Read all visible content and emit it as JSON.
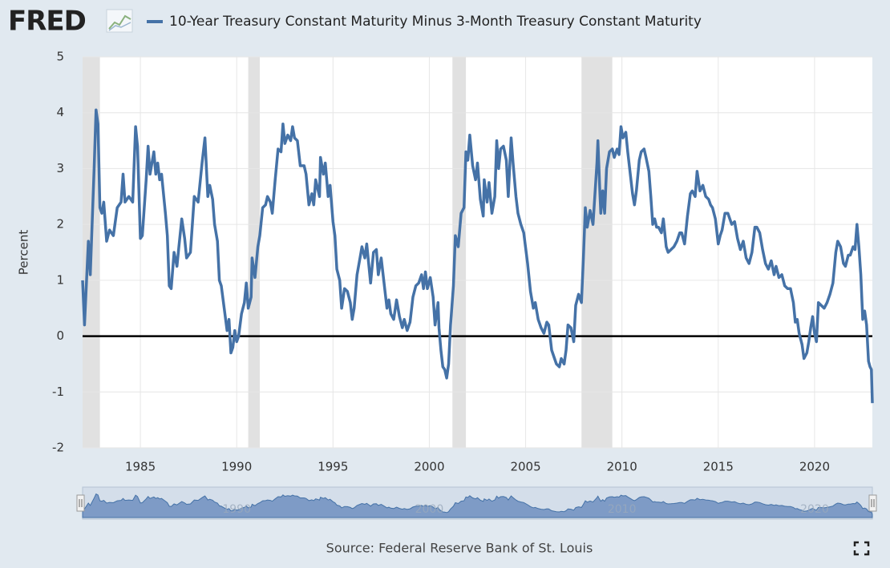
{
  "logo": "FRED",
  "chart_data": {
    "type": "line",
    "y_label": "Percent",
    "source": "Source: Federal Reserve Bank of St. Louis",
    "xlim": [
      1982,
      2023
    ],
    "xticks": [
      1985,
      1990,
      1995,
      2000,
      2005,
      2010,
      2015,
      2020
    ],
    "ylim": [
      -2,
      5
    ],
    "yticks": [
      -2,
      -1,
      0,
      1,
      2,
      3,
      4,
      5
    ],
    "grid": true,
    "zero_line": true,
    "recessions": [
      [
        1982.0,
        1982.9
      ],
      [
        1990.6,
        1991.2
      ],
      [
        2001.2,
        2001.9
      ],
      [
        2007.9,
        2009.5
      ]
    ],
    "navigator_ticks": [
      1990,
      2000,
      2010,
      2020
    ],
    "x": [
      1982.0,
      1982.1,
      1982.3,
      1982.4,
      1982.6,
      1982.7,
      1982.8,
      1982.9,
      1983.0,
      1983.1,
      1983.25,
      1983.4,
      1983.6,
      1983.8,
      1984.0,
      1984.1,
      1984.2,
      1984.4,
      1984.6,
      1984.75,
      1984.85,
      1985.0,
      1985.1,
      1985.3,
      1985.4,
      1985.5,
      1985.7,
      1985.8,
      1985.9,
      1986.0,
      1986.1,
      1986.3,
      1986.4,
      1986.5,
      1986.6,
      1986.75,
      1986.9,
      1987.0,
      1987.15,
      1987.3,
      1987.4,
      1987.6,
      1987.8,
      1988.0,
      1988.2,
      1988.35,
      1988.5,
      1988.6,
      1988.75,
      1988.85,
      1989.0,
      1989.1,
      1989.2,
      1989.35,
      1989.5,
      1989.6,
      1989.7,
      1989.8,
      1989.9,
      1990.0,
      1990.1,
      1990.25,
      1990.4,
      1990.5,
      1990.6,
      1990.75,
      1990.8,
      1990.95,
      1991.1,
      1991.2,
      1991.35,
      1991.5,
      1991.6,
      1991.75,
      1991.85,
      1992.0,
      1992.15,
      1992.3,
      1992.4,
      1992.5,
      1992.65,
      1992.8,
      1992.9,
      1993.0,
      1993.15,
      1993.3,
      1993.5,
      1993.6,
      1993.75,
      1993.9,
      1994.0,
      1994.1,
      1994.3,
      1994.35,
      1994.5,
      1994.6,
      1994.75,
      1994.85,
      1995.0,
      1995.1,
      1995.2,
      1995.35,
      1995.45,
      1995.6,
      1995.75,
      1995.9,
      1996.0,
      1996.1,
      1996.25,
      1996.4,
      1996.5,
      1996.65,
      1996.75,
      1996.85,
      1996.95,
      1997.1,
      1997.25,
      1997.35,
      1997.5,
      1997.65,
      1997.8,
      1997.9,
      1998.0,
      1998.15,
      1998.3,
      1998.45,
      1998.6,
      1998.7,
      1998.85,
      1999.0,
      1999.15,
      1999.3,
      1999.45,
      1999.6,
      1999.7,
      1999.8,
      1999.9,
      2000.05,
      2000.2,
      2000.3,
      2000.45,
      2000.5,
      2000.6,
      2000.7,
      2000.8,
      2000.9,
      2001.0,
      2001.1,
      2001.25,
      2001.35,
      2001.5,
      2001.65,
      2001.8,
      2001.9,
      2002.0,
      2002.1,
      2002.25,
      2002.4,
      2002.5,
      2002.65,
      2002.8,
      2002.85,
      2003.0,
      2003.1,
      2003.25,
      2003.4,
      2003.5,
      2003.6,
      2003.7,
      2003.85,
      2004.0,
      2004.1,
      2004.25,
      2004.35,
      2004.5,
      2004.6,
      2004.75,
      2004.9,
      2005.1,
      2005.25,
      2005.4,
      2005.5,
      2005.65,
      2005.8,
      2005.95,
      2006.1,
      2006.2,
      2006.35,
      2006.5,
      2006.6,
      2006.75,
      2006.85,
      2007.0,
      2007.1,
      2007.2,
      2007.35,
      2007.5,
      2007.6,
      2007.75,
      2007.9,
      2008.0,
      2008.1,
      2008.2,
      2008.35,
      2008.5,
      2008.7,
      2008.75,
      2008.85,
      2008.9,
      2009.0,
      2009.1,
      2009.2,
      2009.35,
      2009.5,
      2009.6,
      2009.75,
      2009.85,
      2009.95,
      2010.05,
      2010.2,
      2010.3,
      2010.45,
      2010.55,
      2010.65,
      2010.75,
      2010.9,
      2011.0,
      2011.15,
      2011.25,
      2011.4,
      2011.5,
      2011.6,
      2011.7,
      2011.8,
      2011.9,
      2012.05,
      2012.15,
      2012.3,
      2012.4,
      2012.55,
      2012.7,
      2012.85,
      2013.0,
      2013.1,
      2013.25,
      2013.4,
      2013.55,
      2013.65,
      2013.8,
      2013.9,
      2014.05,
      2014.2,
      2014.35,
      2014.5,
      2014.6,
      2014.7,
      2014.85,
      2015.0,
      2015.1,
      2015.2,
      2015.35,
      2015.5,
      2015.6,
      2015.7,
      2015.85,
      2016.0,
      2016.15,
      2016.3,
      2016.45,
      2016.6,
      2016.75,
      2016.9,
      2017.0,
      2017.15,
      2017.3,
      2017.45,
      2017.6,
      2017.75,
      2017.9,
      2018.0,
      2018.15,
      2018.3,
      2018.45,
      2018.6,
      2018.75,
      2018.9,
      2019.0,
      2019.1,
      2019.2,
      2019.35,
      2019.45,
      2019.6,
      2019.7,
      2019.8,
      2019.9,
      2020.0,
      2020.1,
      2020.2,
      2020.35,
      2020.5,
      2020.65,
      2020.8,
      2020.95,
      2021.1,
      2021.2,
      2021.35,
      2021.5,
      2021.6,
      2021.75,
      2021.85,
      2022.0,
      2022.1,
      2022.2,
      2022.3,
      2022.4,
      2022.5,
      2022.6,
      2022.7,
      2022.8,
      2022.88,
      2022.95,
      2023.0
    ],
    "series": [
      {
        "name": "10-Year Treasury Constant Maturity Minus 3-Month Treasury Constant Maturity",
        "color": "#4572a7",
        "values": [
          1.0,
          0.2,
          1.7,
          1.1,
          3.0,
          4.05,
          3.8,
          2.3,
          2.2,
          2.4,
          1.7,
          1.9,
          1.8,
          2.3,
          2.4,
          2.9,
          2.4,
          2.5,
          2.4,
          3.75,
          3.4,
          1.75,
          1.8,
          2.8,
          3.4,
          2.9,
          3.3,
          2.9,
          3.1,
          2.8,
          2.9,
          2.2,
          1.8,
          0.9,
          0.85,
          1.5,
          1.25,
          1.6,
          2.1,
          1.75,
          1.4,
          1.5,
          2.5,
          2.4,
          3.1,
          3.55,
          2.5,
          2.7,
          2.45,
          2.0,
          1.7,
          1.0,
          0.9,
          0.5,
          0.1,
          0.3,
          -0.3,
          -0.2,
          0.1,
          -0.1,
          0.0,
          0.4,
          0.6,
          0.95,
          0.5,
          0.7,
          1.4,
          1.05,
          1.6,
          1.8,
          2.3,
          2.35,
          2.5,
          2.4,
          2.2,
          2.8,
          3.35,
          3.3,
          3.8,
          3.45,
          3.6,
          3.5,
          3.75,
          3.55,
          3.5,
          3.05,
          3.05,
          2.9,
          2.35,
          2.55,
          2.35,
          2.8,
          2.5,
          3.2,
          2.9,
          3.1,
          2.5,
          2.7,
          2.05,
          1.8,
          1.2,
          1.0,
          0.5,
          0.85,
          0.8,
          0.6,
          0.3,
          0.5,
          1.1,
          1.4,
          1.6,
          1.4,
          1.65,
          1.3,
          0.95,
          1.5,
          1.55,
          1.1,
          1.4,
          0.95,
          0.5,
          0.65,
          0.4,
          0.3,
          0.65,
          0.35,
          0.15,
          0.3,
          0.1,
          0.25,
          0.7,
          0.9,
          0.95,
          1.1,
          0.85,
          1.15,
          0.85,
          1.05,
          0.7,
          0.2,
          0.6,
          0.15,
          -0.25,
          -0.55,
          -0.6,
          -0.75,
          -0.5,
          0.2,
          0.9,
          1.8,
          1.6,
          2.2,
          2.3,
          3.3,
          3.15,
          3.6,
          3.05,
          2.8,
          3.1,
          2.45,
          2.15,
          2.8,
          2.4,
          2.75,
          2.2,
          2.5,
          3.5,
          3.0,
          3.35,
          3.4,
          3.15,
          2.5,
          3.55,
          3.1,
          2.5,
          2.2,
          2.0,
          1.85,
          1.3,
          0.8,
          0.5,
          0.6,
          0.3,
          0.15,
          0.05,
          0.25,
          0.2,
          -0.25,
          -0.4,
          -0.5,
          -0.55,
          -0.4,
          -0.5,
          -0.25,
          0.2,
          0.15,
          -0.1,
          0.55,
          0.75,
          0.6,
          1.4,
          2.3,
          1.95,
          2.25,
          2.0,
          3.1,
          3.5,
          2.6,
          2.2,
          2.6,
          2.2,
          3.0,
          3.3,
          3.35,
          3.2,
          3.35,
          3.25,
          3.75,
          3.55,
          3.65,
          3.3,
          2.85,
          2.55,
          2.35,
          2.6,
          3.15,
          3.3,
          3.35,
          3.2,
          2.95,
          2.5,
          2.0,
          2.1,
          1.95,
          1.95,
          1.85,
          2.1,
          1.6,
          1.5,
          1.55,
          1.6,
          1.7,
          1.85,
          1.85,
          1.65,
          2.15,
          2.55,
          2.6,
          2.5,
          2.95,
          2.6,
          2.7,
          2.5,
          2.45,
          2.35,
          2.3,
          2.1,
          1.65,
          1.8,
          1.9,
          2.2,
          2.2,
          2.1,
          2.0,
          2.05,
          1.75,
          1.55,
          1.7,
          1.4,
          1.3,
          1.5,
          1.95,
          1.95,
          1.85,
          1.55,
          1.3,
          1.2,
          1.35,
          1.1,
          1.25,
          1.05,
          1.1,
          0.9,
          0.85,
          0.85,
          0.6,
          0.25,
          0.3,
          0.05,
          -0.15,
          -0.4,
          -0.3,
          -0.1,
          0.15,
          0.35,
          0.05,
          -0.1,
          0.6,
          0.55,
          0.5,
          0.6,
          0.75,
          0.95,
          1.5,
          1.7,
          1.6,
          1.3,
          1.25,
          1.45,
          1.45,
          1.6,
          1.55,
          2.0,
          1.6,
          1.1,
          0.3,
          0.45,
          0.2,
          -0.45,
          -0.55,
          -0.6,
          -1.2
        ]
      }
    ]
  }
}
